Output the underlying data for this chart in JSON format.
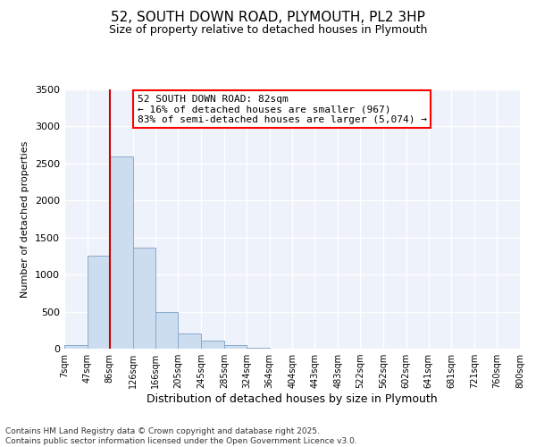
{
  "title": "52, SOUTH DOWN ROAD, PLYMOUTH, PL2 3HP",
  "subtitle": "Size of property relative to detached houses in Plymouth",
  "xlabel": "Distribution of detached houses by size in Plymouth",
  "ylabel": "Number of detached properties",
  "bar_color": "#ccddf0",
  "bar_edge_color": "#88aacc",
  "background_color": "#eef2fb",
  "annotation_box_title": "52 SOUTH DOWN ROAD: 82sqm",
  "annotation_line1": "← 16% of detached houses are smaller (967)",
  "annotation_line2": "83% of semi-detached houses are larger (5,074) →",
  "vline_x": 86,
  "vline_color": "#cc0000",
  "categories": [
    "7sqm",
    "47sqm",
    "86sqm",
    "126sqm",
    "166sqm",
    "205sqm",
    "245sqm",
    "285sqm",
    "324sqm",
    "364sqm",
    "404sqm",
    "443sqm",
    "483sqm",
    "522sqm",
    "562sqm",
    "602sqm",
    "641sqm",
    "681sqm",
    "721sqm",
    "760sqm",
    "800sqm"
  ],
  "bin_edges": [
    7,
    47,
    86,
    126,
    166,
    205,
    245,
    285,
    324,
    364,
    404,
    443,
    483,
    522,
    562,
    602,
    641,
    681,
    721,
    760,
    800
  ],
  "bar_heights": [
    50,
    1260,
    2600,
    1360,
    500,
    200,
    110,
    50,
    15,
    5,
    2,
    0,
    0,
    0,
    0,
    0,
    0,
    0,
    0,
    0
  ],
  "ylim": [
    0,
    3500
  ],
  "yticks": [
    0,
    500,
    1000,
    1500,
    2000,
    2500,
    3000,
    3500
  ],
  "footnote_line1": "Contains HM Land Registry data © Crown copyright and database right 2025.",
  "footnote_line2": "Contains public sector information licensed under the Open Government Licence v3.0."
}
